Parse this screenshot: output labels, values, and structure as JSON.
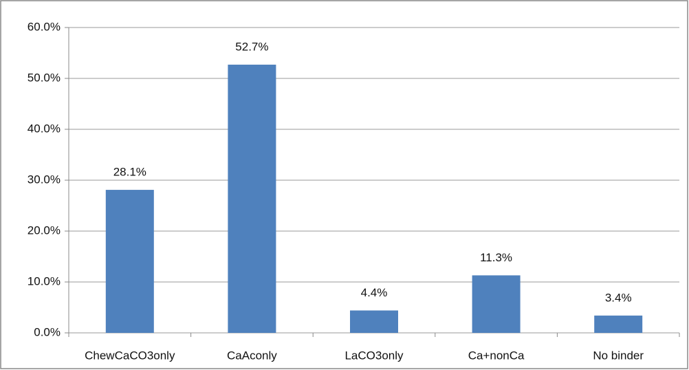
{
  "chart_data": {
    "type": "bar",
    "categories": [
      "ChewCaCO3only",
      "CaAconly",
      "LaCO3only",
      "Ca+nonCa",
      "No binder"
    ],
    "values": [
      28.1,
      52.7,
      4.4,
      11.3,
      3.4
    ],
    "value_labels": [
      "28.1%",
      "52.7%",
      "4.4%",
      "11.3%",
      "3.4%"
    ],
    "color": "#4f81bd",
    "ylim": [
      0,
      60
    ],
    "yticks": [
      {
        "value": 0,
        "label": "0.0%"
      },
      {
        "value": 10,
        "label": "10.0%"
      },
      {
        "value": 20,
        "label": "20.0%"
      },
      {
        "value": 30,
        "label": "30.0%"
      },
      {
        "value": 40,
        "label": "40.0%"
      },
      {
        "value": 50,
        "label": "50.0%"
      },
      {
        "value": 60,
        "label": "60.0%"
      }
    ],
    "grid": true
  }
}
